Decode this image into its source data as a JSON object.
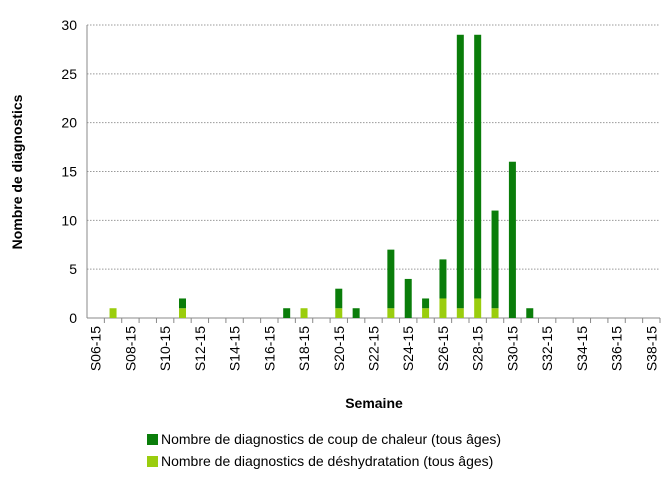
{
  "chart_data": {
    "type": "stacked_bar",
    "categories": [
      "S06-15",
      null,
      "S08-15",
      null,
      "S10-15",
      null,
      "S12-15",
      null,
      "S14-15",
      null,
      "S16-15",
      null,
      "S18-15",
      null,
      "S20-15",
      null,
      "S22-15",
      null,
      "S24-15",
      null,
      "S26-15",
      null,
      "S28-15",
      null,
      "S30-15",
      null,
      "S32-15",
      null,
      "S34-15",
      null,
      "S36-15",
      null,
      "S38-15"
    ],
    "series": [
      {
        "name": "Nombre de diagnostics de coup de chaleur (tous âges)",
        "color": "#0a7d0a",
        "values": [
          0,
          0,
          0,
          0,
          0,
          1,
          0,
          0,
          0,
          0,
          0,
          1,
          0,
          0,
          2,
          1,
          0,
          6,
          4,
          1,
          4,
          28,
          27,
          10,
          16,
          1,
          0,
          0,
          0,
          0,
          0,
          0,
          0
        ]
      },
      {
        "name": "Nombre de diagnostics de déshydratation (tous âges)",
        "color": "#9acd0e",
        "values": [
          0,
          1,
          0,
          0,
          0,
          1,
          0,
          0,
          0,
          0,
          0,
          0,
          1,
          0,
          1,
          0,
          0,
          1,
          0,
          1,
          2,
          1,
          2,
          1,
          0,
          0,
          0,
          0,
          0,
          0,
          0,
          0,
          0
        ]
      }
    ],
    "ylim": [
      0,
      30
    ],
    "yticks": [
      0,
      5,
      10,
      15,
      20,
      25,
      30
    ],
    "grid": true,
    "ylabel": "Nombre de diagnostics",
    "xlabel": "Semaine",
    "legend": "bottom"
  }
}
